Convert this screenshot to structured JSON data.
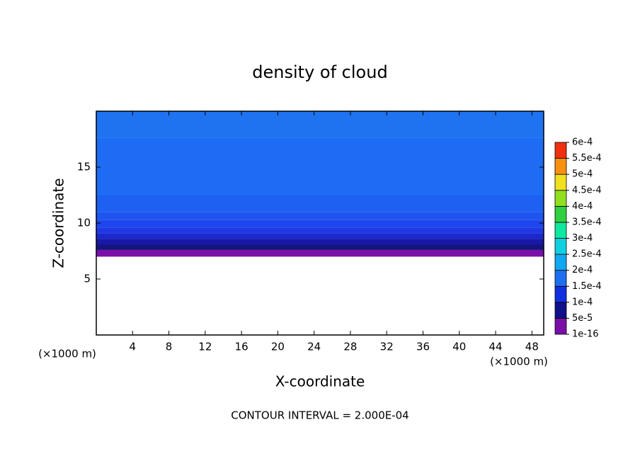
{
  "chart_data": {
    "type": "contour",
    "title": "density of cloud",
    "x_label": "X-coordinate",
    "y_label": "Z-coordinate",
    "x_unit_left": "(×1000 m)",
    "x_unit_right": "(×1000 m)",
    "footnote": "CONTOUR INTERVAL = 2.000E-04",
    "xlim": [
      0,
      49.3
    ],
    "ylim": [
      0,
      20
    ],
    "xticks": [
      4,
      8,
      12,
      16,
      20,
      24,
      28,
      32,
      36,
      40,
      44,
      48
    ],
    "yticks": [
      5,
      10,
      15
    ],
    "layers": [
      {
        "z": [
          7,
          7.6
        ],
        "color": "#7a0fa8"
      },
      {
        "z": [
          7.6,
          8.1
        ],
        "color": "#14147e"
      },
      {
        "z": [
          8.1,
          8.6
        ],
        "color": "#1818a8"
      },
      {
        "z": [
          8.6,
          9.1
        ],
        "color": "#1c28cc"
      },
      {
        "z": [
          9.1,
          9.6
        ],
        "color": "#1e38e4"
      },
      {
        "z": [
          9.6,
          10.3
        ],
        "color": "#1e46ee"
      },
      {
        "z": [
          10.3,
          11
        ],
        "color": "#1e54f0"
      },
      {
        "z": [
          11,
          12.5
        ],
        "color": "#1e60f2"
      },
      {
        "z": [
          12.5,
          17.6
        ],
        "color": "#1e6cf4"
      },
      {
        "z": [
          17.6,
          20
        ],
        "color": "#1f73f0"
      }
    ],
    "colorbar": {
      "ticks": [
        {
          "value": 1e-16,
          "label": "1e-16"
        },
        {
          "value": 5e-05,
          "label": "5e-5"
        },
        {
          "value": 0.0001,
          "label": "1e-4"
        },
        {
          "value": 0.00015,
          "label": "1.5e-4"
        },
        {
          "value": 0.0002,
          "label": "2e-4"
        },
        {
          "value": 0.00025,
          "label": "2.5e-4"
        },
        {
          "value": 0.0003,
          "label": "3e-4"
        },
        {
          "value": 0.00035,
          "label": "3.5e-4"
        },
        {
          "value": 0.0004,
          "label": "4e-4"
        },
        {
          "value": 0.00045,
          "label": "4.5e-4"
        },
        {
          "value": 0.0005,
          "label": "5e-4"
        },
        {
          "value": 0.00055,
          "label": "5.5e-4"
        },
        {
          "value": 0.0006,
          "label": "6e-4"
        }
      ],
      "colors": [
        "#7a0fa8",
        "#10108a",
        "#1030e0",
        "#1e6ff0",
        "#10a8f0",
        "#10d0e0",
        "#10e8a0",
        "#30d040",
        "#90e020",
        "#f0e020",
        "#f89010",
        "#f03010"
      ]
    }
  }
}
